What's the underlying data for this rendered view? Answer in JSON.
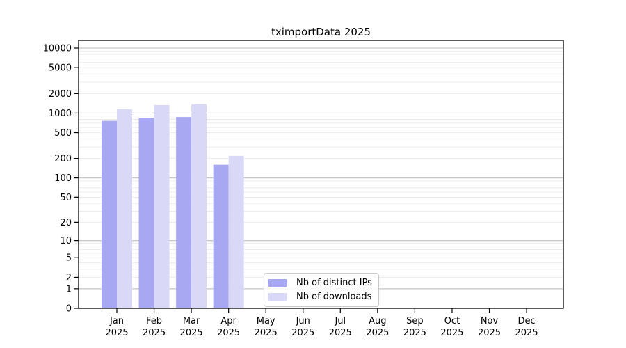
{
  "chart_data": {
    "type": "bar",
    "title": "tximportData 2025",
    "yscale": "log10(value+1)",
    "ylim": [
      0,
      10000
    ],
    "yticks": [
      0,
      1,
      2,
      5,
      10,
      20,
      50,
      100,
      200,
      500,
      1000,
      2000,
      5000,
      10000
    ],
    "categories": [
      "Jan",
      "Feb",
      "Mar",
      "Apr",
      "May",
      "Jun",
      "Jul",
      "Aug",
      "Sep",
      "Oct",
      "Nov",
      "Dec"
    ],
    "year_label": "2025",
    "series": [
      {
        "name": "Nb of distinct IPs",
        "color": "#a7a7f2",
        "values": [
          760,
          845,
          870,
          160,
          0,
          0,
          0,
          0,
          0,
          0,
          0,
          0
        ]
      },
      {
        "name": "Nb of downloads",
        "color": "#d9d9f7",
        "values": [
          1150,
          1330,
          1365,
          220,
          0,
          0,
          0,
          0,
          0,
          0,
          0,
          0
        ]
      }
    ],
    "legend_position": "bottom-center",
    "grid": {
      "major_color": "#c6c6c6",
      "minor_color": "#ececec",
      "major_at_powers_of_ten": true
    },
    "spine_color": "#000000"
  }
}
